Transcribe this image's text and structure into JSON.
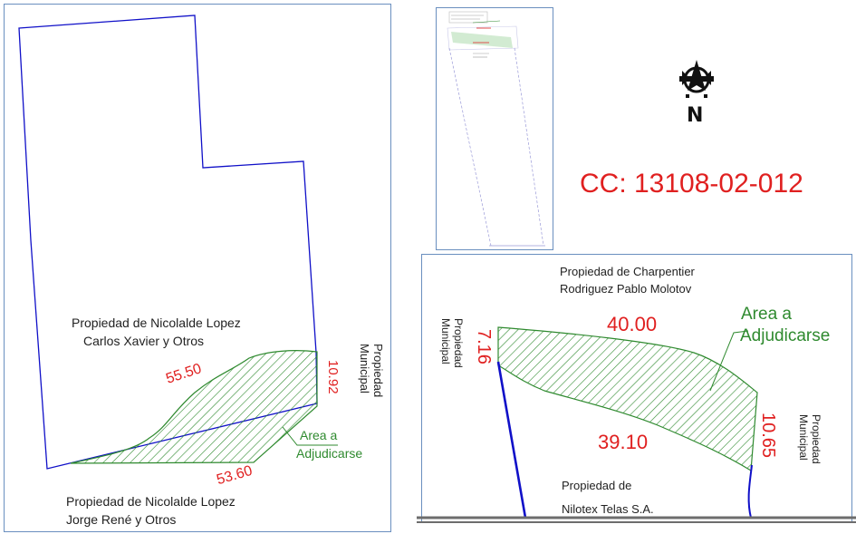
{
  "left_plan": {
    "owner_north_line1": "Propiedad de Nicolalde Lopez",
    "owner_north_line2": "Carlos Xavier y Otros",
    "owner_south_line1": "Propiedad de Nicolalde Lopez",
    "owner_south_line2": "Jorge René y Otros",
    "owner_east": "Propiedad Municipal",
    "dim_north": "55.50",
    "dim_south": "53.60",
    "dim_east": "10.92",
    "area_label_line1": "Area a",
    "area_label_line2": "Adjudicarse"
  },
  "cadastral_code": "CC: 13108-02-012",
  "north_arrow": {
    "letter": "N",
    "icon": "north-arrow-icon"
  },
  "detail_plan": {
    "owner_north_line1": "Propiedad de Charpentier",
    "owner_north_line2": "Rodriguez Pablo Molotov",
    "owner_south_line1": "Propiedad de",
    "owner_south_line2": "Nilotex Telas S.A.",
    "owner_west": "Propiedad Municipal",
    "owner_east": "Propiedad Municipal",
    "dim_north": "40.00",
    "dim_south": "39.10",
    "dim_west": "7.16",
    "dim_east": "10.65",
    "area_label_line1": "Area a",
    "area_label_line2": "Adjudicarse"
  },
  "colors": {
    "boundary": "#1010c8",
    "hatch": "#2f8a2f",
    "dimension": "#e02020",
    "frame": "#6a8fbf"
  }
}
